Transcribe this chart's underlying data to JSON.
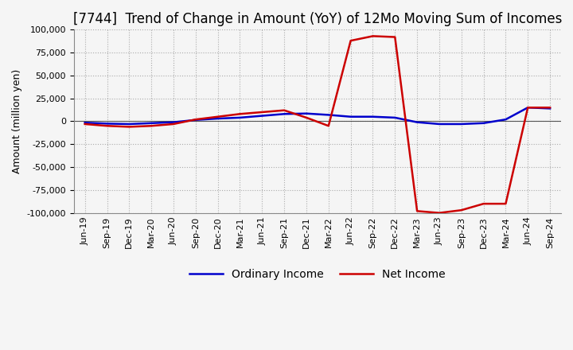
{
  "title": "[7744]  Trend of Change in Amount (YoY) of 12Mo Moving Sum of Incomes",
  "ylabel": "Amount (million yen)",
  "ylim": [
    -100000,
    100000
  ],
  "yticks": [
    -100000,
    -75000,
    -50000,
    -25000,
    0,
    25000,
    50000,
    75000,
    100000
  ],
  "background_color": "#f5f5f5",
  "plot_bg_color": "#f5f5f5",
  "grid_color": "#aaaaaa",
  "x_labels": [
    "Jun-19",
    "Sep-19",
    "Dec-19",
    "Mar-20",
    "Jun-20",
    "Sep-20",
    "Dec-20",
    "Mar-21",
    "Jun-21",
    "Sep-21",
    "Dec-21",
    "Mar-22",
    "Jun-22",
    "Sep-22",
    "Dec-22",
    "Mar-23",
    "Jun-23",
    "Sep-23",
    "Dec-23",
    "Mar-24",
    "Jun-24",
    "Sep-24"
  ],
  "ordinary_income": [
    -1500,
    -2500,
    -3000,
    -2000,
    -1000,
    1500,
    3000,
    4000,
    6000,
    8000,
    8500,
    7000,
    5000,
    5000,
    4000,
    -1000,
    -3000,
    -3000,
    -2000,
    2000,
    15000,
    14000
  ],
  "net_income": [
    -3000,
    -5000,
    -6000,
    -5000,
    -3000,
    2000,
    5000,
    8000,
    10000,
    12000,
    4000,
    -5000,
    88000,
    93000,
    92000,
    -98000,
    -100000,
    -97000,
    -90000,
    -90000,
    15000,
    15000
  ],
  "ordinary_color": "#0000cc",
  "net_color": "#cc0000",
  "line_width": 1.8,
  "title_fontsize": 12,
  "tick_fontsize": 8,
  "label_fontsize": 9,
  "legend_fontsize": 10
}
